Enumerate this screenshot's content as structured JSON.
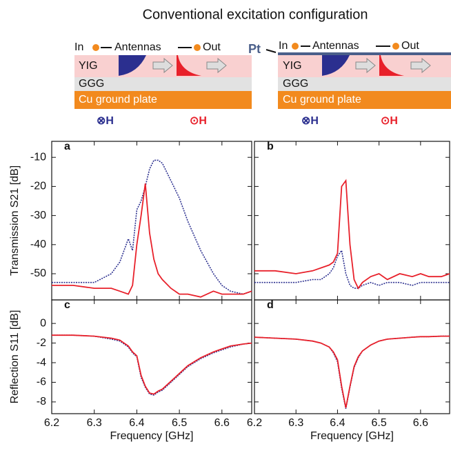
{
  "title": "Conventional excitation configuration",
  "diagrams": [
    {
      "in": "In",
      "antennas": "Antennas",
      "out": "Out",
      "layers": [
        "YIG",
        "GGG",
        "Cu ground plate"
      ],
      "field_left": "⊗H",
      "field_right": "⊙H"
    },
    {
      "pt": "Pt",
      "in": "In",
      "antennas": "Antennas",
      "out": "Out",
      "layers": [
        "YIG",
        "GGG",
        "Cu ground plate"
      ],
      "field_left": "⊗H",
      "field_right": "⊙H"
    }
  ],
  "chart_data": [
    {
      "type": "line",
      "panel_label": "a",
      "ylabel": "Transmission S21 [dB]",
      "x": [
        6.2,
        6.25,
        6.3,
        6.34,
        6.36,
        6.38,
        6.39,
        6.4,
        6.41,
        6.42,
        6.43,
        6.44,
        6.45,
        6.46,
        6.48,
        6.5,
        6.52,
        6.55,
        6.58,
        6.6,
        6.62,
        6.65,
        6.67
      ],
      "series": [
        {
          "color": "#2b2f8f",
          "dash": true,
          "values": [
            -53,
            -53,
            -53,
            -50,
            -46,
            -38,
            -42,
            -28,
            -25,
            -20,
            -14,
            -11,
            -11,
            -12,
            -18,
            -24,
            -32,
            -42,
            -50,
            -54,
            -56,
            -57,
            -56
          ]
        },
        {
          "color": "#e8202a",
          "dash": false,
          "values": [
            -54,
            -54,
            -55,
            -55,
            -56,
            -57,
            -54,
            -40,
            -30,
            -19,
            -36,
            -45,
            -50,
            -52,
            -55,
            -57,
            -57,
            -58,
            -56,
            -57,
            -57,
            -57,
            -56
          ]
        }
      ],
      "xlim": [
        6.2,
        6.67
      ],
      "xticks": [
        6.2,
        6.3,
        6.4,
        6.5,
        6.6
      ],
      "ylim": [
        -59,
        -4.5
      ],
      "yticks": [
        -10,
        -20,
        -30,
        -40,
        -50
      ],
      "show_xtick_labels": false,
      "show_ytick_labels": true
    },
    {
      "type": "line",
      "panel_label": "b",
      "x": [
        6.2,
        6.25,
        6.3,
        6.34,
        6.36,
        6.38,
        6.39,
        6.4,
        6.41,
        6.42,
        6.43,
        6.44,
        6.45,
        6.46,
        6.48,
        6.5,
        6.52,
        6.55,
        6.58,
        6.6,
        6.62,
        6.65,
        6.67
      ],
      "series": [
        {
          "color": "#2b2f8f",
          "dash": true,
          "values": [
            -53,
            -53,
            -53,
            -52,
            -52,
            -50,
            -48,
            -44,
            -42,
            -50,
            -54,
            -55,
            -55,
            -54,
            -53,
            -54,
            -53,
            -53,
            -54,
            -53,
            -53,
            -53,
            -53
          ]
        },
        {
          "color": "#e8202a",
          "dash": false,
          "values": [
            -49,
            -49,
            -50,
            -49,
            -48,
            -47,
            -46,
            -43,
            -20,
            -18,
            -40,
            -52,
            -55,
            -53,
            -51,
            -50,
            -52,
            -50,
            -51,
            -50,
            -51,
            -51,
            -50
          ]
        }
      ],
      "xlim": [
        6.2,
        6.67
      ],
      "xticks": [
        6.2,
        6.3,
        6.4,
        6.5,
        6.6
      ],
      "ylim": [
        -59,
        -4.5
      ],
      "yticks": [
        -10,
        -20,
        -30,
        -40,
        -50
      ],
      "show_xtick_labels": false,
      "show_ytick_labels": false
    },
    {
      "type": "line",
      "panel_label": "c",
      "ylabel": "Reflection S11 [dB]",
      "xlabel": "Frequency [GHz]",
      "x": [
        6.2,
        6.25,
        6.3,
        6.34,
        6.36,
        6.38,
        6.39,
        6.4,
        6.41,
        6.42,
        6.43,
        6.44,
        6.45,
        6.46,
        6.48,
        6.5,
        6.52,
        6.55,
        6.58,
        6.6,
        6.62,
        6.65,
        6.67
      ],
      "series": [
        {
          "color": "#2b2f8f",
          "dash": true,
          "values": [
            -1.2,
            -1.2,
            -1.3,
            -1.6,
            -1.8,
            -2.4,
            -3,
            -3.4,
            -5.5,
            -6.5,
            -7.2,
            -7.3,
            -7,
            -6.8,
            -6,
            -5.2,
            -4.4,
            -3.6,
            -3,
            -2.7,
            -2.4,
            -2.1,
            -2
          ]
        },
        {
          "color": "#e8202a",
          "dash": false,
          "values": [
            -1.2,
            -1.2,
            -1.3,
            -1.5,
            -1.7,
            -2.3,
            -2.9,
            -3.3,
            -5.3,
            -6.4,
            -7.1,
            -7.2,
            -6.9,
            -6.7,
            -5.9,
            -5.1,
            -4.3,
            -3.5,
            -2.9,
            -2.6,
            -2.3,
            -2.1,
            -2
          ]
        }
      ],
      "xlim": [
        6.2,
        6.67
      ],
      "xticks": [
        6.2,
        6.3,
        6.4,
        6.5,
        6.6
      ],
      "ylim": [
        -9.2,
        2.4
      ],
      "yticks": [
        0,
        -2,
        -4,
        -6,
        -8
      ],
      "show_xtick_labels": true,
      "show_ytick_labels": true
    },
    {
      "type": "line",
      "panel_label": "d",
      "xlabel": "Frequency [GHz]",
      "x": [
        6.2,
        6.25,
        6.3,
        6.34,
        6.36,
        6.38,
        6.39,
        6.4,
        6.41,
        6.42,
        6.43,
        6.44,
        6.45,
        6.46,
        6.48,
        6.5,
        6.52,
        6.55,
        6.58,
        6.6,
        6.62,
        6.65,
        6.67
      ],
      "series": [
        {
          "color": "#2b2f8f",
          "dash": true,
          "values": [
            -1.4,
            -1.5,
            -1.6,
            -1.8,
            -2,
            -2.4,
            -3,
            -3.9,
            -6.6,
            -8.7,
            -6.5,
            -4.5,
            -3.5,
            -2.8,
            -2.2,
            -1.8,
            -1.6,
            -1.5,
            -1.4,
            -1.35,
            -1.35,
            -1.3,
            -1.3
          ]
        },
        {
          "color": "#e8202a",
          "dash": false,
          "values": [
            -1.4,
            -1.5,
            -1.6,
            -1.8,
            -2,
            -2.4,
            -2.9,
            -3.7,
            -6.4,
            -8.6,
            -6.4,
            -4.4,
            -3.4,
            -2.8,
            -2.2,
            -1.8,
            -1.6,
            -1.5,
            -1.4,
            -1.35,
            -1.35,
            -1.3,
            -1.3
          ]
        }
      ],
      "xlim": [
        6.2,
        6.67
      ],
      "xticks": [
        6.2,
        6.3,
        6.4,
        6.5,
        6.6
      ],
      "ylim": [
        -9.2,
        2.4
      ],
      "yticks": [
        0,
        -2,
        -4,
        -6,
        -8
      ],
      "show_xtick_labels": true,
      "show_ytick_labels": false
    }
  ]
}
